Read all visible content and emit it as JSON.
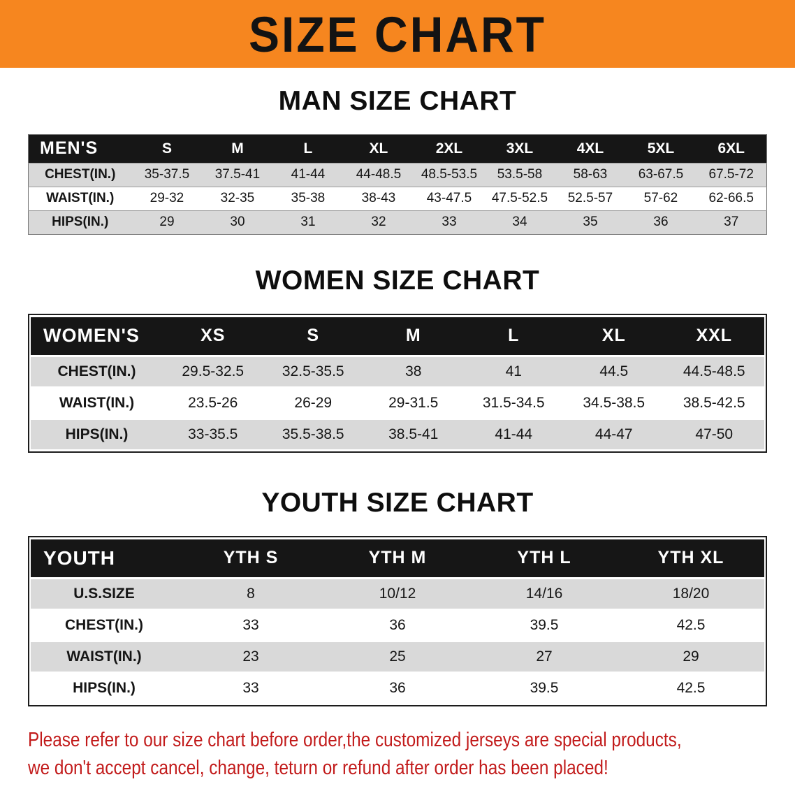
{
  "banner": {
    "title": "SIZE CHART"
  },
  "sections": [
    {
      "heading": "MAN SIZE CHART",
      "header": [
        "MEN'S",
        "S",
        "M",
        "L",
        "XL",
        "2XL",
        "3XL",
        "4XL",
        "5XL",
        "6XL"
      ],
      "rows": [
        [
          "CHEST(IN.)",
          "35-37.5",
          "37.5-41",
          "41-44",
          "44-48.5",
          "48.5-53.5",
          "53.5-58",
          "58-63",
          "63-67.5",
          "67.5-72"
        ],
        [
          "WAIST(IN.)",
          "29-32",
          "32-35",
          "35-38",
          "38-43",
          "43-47.5",
          "47.5-52.5",
          "52.5-57",
          "57-62",
          "62-66.5"
        ],
        [
          "HIPS(IN.)",
          "29",
          "30",
          "31",
          "32",
          "33",
          "34",
          "35",
          "36",
          "37"
        ]
      ]
    },
    {
      "heading": "WOMEN SIZE CHART",
      "header": [
        "WOMEN'S",
        "XS",
        "S",
        "M",
        "L",
        "XL",
        "XXL"
      ],
      "rows": [
        [
          "CHEST(IN.)",
          "29.5-32.5",
          "32.5-35.5",
          "38",
          "41",
          "44.5",
          "44.5-48.5"
        ],
        [
          "WAIST(IN.)",
          "23.5-26",
          "26-29",
          "29-31.5",
          "31.5-34.5",
          "34.5-38.5",
          "38.5-42.5"
        ],
        [
          "HIPS(IN.)",
          "33-35.5",
          "35.5-38.5",
          "38.5-41",
          "41-44",
          "44-47",
          "47-50"
        ]
      ]
    },
    {
      "heading": "YOUTH SIZE CHART",
      "header": [
        "YOUTH",
        "YTH S",
        "YTH M",
        "YTH L",
        "YTH XL"
      ],
      "rows": [
        [
          "U.S.SIZE",
          "8",
          "10/12",
          "14/16",
          "18/20"
        ],
        [
          "CHEST(IN.)",
          "33",
          "36",
          "39.5",
          "42.5"
        ],
        [
          "WAIST(IN.)",
          "23",
          "25",
          "27",
          "29"
        ],
        [
          "HIPS(IN.)",
          "33",
          "36",
          "39.5",
          "42.5"
        ]
      ]
    }
  ],
  "footer_note": {
    "line1": "Please refer to our size chart before order,the customized jerseys are special products,",
    "line2": "we don't accept cancel, change, teturn or refund after order has been placed!"
  },
  "colors": {
    "banner_orange": "#f6861f",
    "header_black": "#161616",
    "row_gray": "#d9d9d9",
    "row_white": "#ffffff",
    "note_red": "#c21b1b"
  }
}
